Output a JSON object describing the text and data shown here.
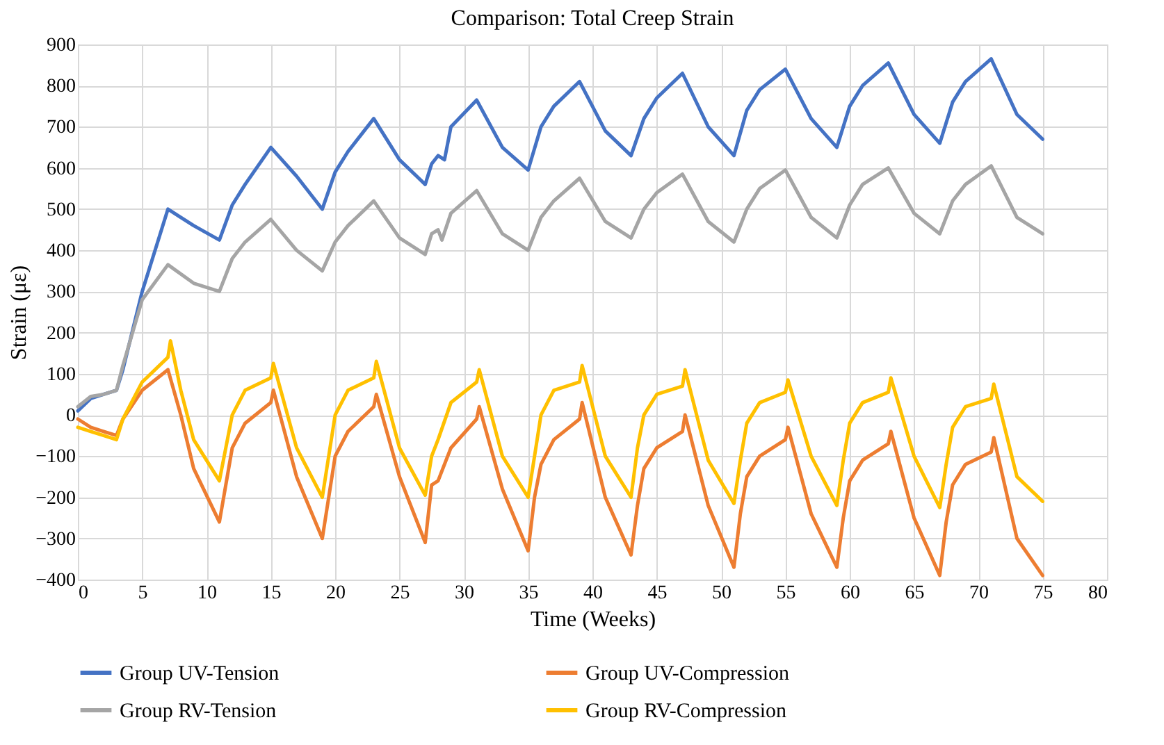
{
  "chart_data": {
    "type": "line",
    "title": "Comparison: Total Creep Strain",
    "xlabel": "Time (Weeks)",
    "ylabel": "Strain (με)",
    "xlim": [
      0,
      80
    ],
    "xticks": [
      0,
      5,
      10,
      15,
      20,
      25,
      30,
      35,
      40,
      45,
      50,
      55,
      60,
      65,
      70,
      75,
      80
    ],
    "ylim": [
      -400,
      900
    ],
    "yticks": [
      -400,
      -300,
      -200,
      -100,
      0,
      100,
      200,
      300,
      400,
      500,
      600,
      700,
      800,
      900
    ],
    "grid": true,
    "legend": "bottom",
    "marker": "none",
    "line_style": "solid",
    "series": [
      {
        "name": "Group UV-Tension",
        "color": "#4472c4",
        "x": [
          0,
          1,
          2,
          3,
          3.5,
          5,
          7,
          9,
          11,
          12,
          13,
          15,
          17,
          19,
          20,
          21,
          23,
          25,
          27,
          27.5,
          28,
          28.5,
          29,
          31,
          33,
          35,
          36,
          37,
          39,
          41,
          43,
          44,
          45,
          47,
          49,
          51,
          52,
          53,
          55,
          57,
          59,
          60,
          61,
          63,
          65,
          67,
          68,
          69,
          71,
          73,
          75
        ],
        "values": [
          10,
          40,
          50,
          60,
          110,
          300,
          500,
          460,
          425,
          510,
          560,
          650,
          580,
          500,
          590,
          640,
          720,
          620,
          560,
          610,
          630,
          620,
          700,
          765,
          650,
          595,
          700,
          750,
          810,
          690,
          630,
          720,
          770,
          830,
          700,
          630,
          740,
          790,
          840,
          720,
          650,
          750,
          800,
          855,
          730,
          660,
          760,
          810,
          865,
          730,
          670
        ]
      },
      {
        "name": "Group UV-Compression",
        "color": "#ed7d31",
        "x": [
          0,
          1,
          2,
          3,
          3.5,
          5,
          7,
          8,
          9,
          11,
          11.5,
          12,
          13,
          15,
          15.2,
          17,
          19,
          19.5,
          20,
          21,
          23,
          23.2,
          25,
          27,
          27.5,
          28,
          29,
          31,
          31.2,
          33,
          35,
          35.5,
          36,
          37,
          39,
          39.2,
          41,
          43,
          43.5,
          44,
          45,
          47,
          47.2,
          49,
          51,
          51.5,
          52,
          53,
          55,
          55.2,
          57,
          59,
          59.5,
          60,
          61,
          63,
          63.2,
          65,
          67,
          67.5,
          68,
          69,
          71,
          71.2,
          73,
          75
        ],
        "values": [
          -10,
          -30,
          -40,
          -50,
          -10,
          60,
          110,
          0,
          -130,
          -260,
          -170,
          -80,
          -20,
          30,
          60,
          -150,
          -300,
          -200,
          -100,
          -40,
          20,
          50,
          -150,
          -310,
          -170,
          -160,
          -80,
          -10,
          20,
          -180,
          -330,
          -200,
          -120,
          -60,
          -10,
          30,
          -200,
          -340,
          -220,
          -130,
          -80,
          -40,
          0,
          -220,
          -370,
          -240,
          -150,
          -100,
          -60,
          -30,
          -240,
          -370,
          -250,
          -160,
          -110,
          -70,
          -40,
          -250,
          -390,
          -260,
          -170,
          -120,
          -90,
          -55,
          -300,
          -390
        ]
      },
      {
        "name": "Group RV-Tension",
        "color": "#a5a5a5",
        "x": [
          0,
          1,
          2,
          3,
          3.5,
          5,
          7,
          9,
          11,
          12,
          13,
          15,
          17,
          19,
          20,
          21,
          23,
          25,
          27,
          27.5,
          28,
          28.3,
          29,
          31,
          33,
          35,
          36,
          37,
          39,
          41,
          43,
          44,
          45,
          47,
          49,
          51,
          52,
          53,
          55,
          57,
          59,
          60,
          61,
          63,
          65,
          67,
          68,
          69,
          71,
          73,
          75
        ],
        "values": [
          20,
          45,
          50,
          60,
          120,
          280,
          365,
          320,
          300,
          380,
          420,
          475,
          400,
          350,
          420,
          460,
          520,
          430,
          390,
          440,
          450,
          425,
          490,
          545,
          440,
          400,
          480,
          520,
          575,
          470,
          430,
          500,
          540,
          585,
          470,
          420,
          500,
          550,
          595,
          480,
          430,
          510,
          560,
          600,
          490,
          440,
          520,
          560,
          605,
          480,
          440
        ]
      },
      {
        "name": "Group RV-Compression",
        "color": "#ffc000",
        "x": [
          0,
          1,
          2,
          3,
          3.5,
          5,
          7,
          7.2,
          8,
          9,
          11,
          11.5,
          12,
          13,
          15,
          15.2,
          17,
          19,
          19.5,
          20,
          21,
          23,
          23.2,
          25,
          27,
          27.5,
          28,
          29,
          31,
          31.2,
          33,
          35,
          35.5,
          36,
          37,
          39,
          39.2,
          41,
          43,
          43.5,
          44,
          45,
          47,
          47.2,
          49,
          51,
          51.5,
          52,
          53,
          55,
          55.2,
          57,
          59,
          59.5,
          60,
          61,
          63,
          63.2,
          65,
          67,
          67.5,
          68,
          69,
          71,
          71.2,
          73,
          75
        ],
        "values": [
          -30,
          -40,
          -50,
          -60,
          -10,
          80,
          140,
          180,
          60,
          -60,
          -160,
          -80,
          0,
          60,
          90,
          125,
          -80,
          -200,
          -100,
          0,
          60,
          90,
          130,
          -80,
          -195,
          -100,
          -60,
          30,
          80,
          110,
          -100,
          -200,
          -100,
          0,
          60,
          80,
          120,
          -100,
          -200,
          -80,
          0,
          50,
          70,
          110,
          -110,
          -215,
          -110,
          -20,
          30,
          55,
          85,
          -100,
          -220,
          -110,
          -20,
          30,
          55,
          90,
          -100,
          -225,
          -120,
          -30,
          20,
          40,
          75,
          -150,
          -210
        ]
      }
    ]
  }
}
